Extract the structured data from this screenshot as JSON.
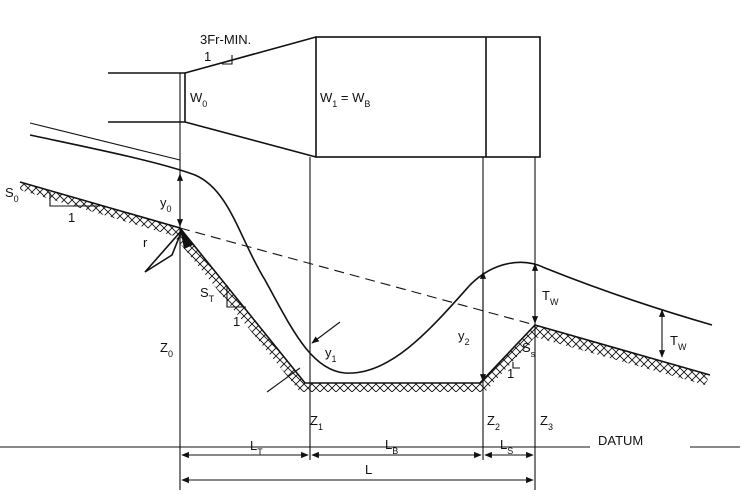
{
  "labels": [
    [
      "3Fr-MIN."
    ],
    [
      "1"
    ],
    [
      "W",
      "0"
    ],
    [
      "W",
      "1",
      " = W",
      "B"
    ],
    [
      "S",
      "0"
    ],
    [
      "1"
    ],
    [
      "y",
      "0"
    ],
    [
      "r"
    ],
    [
      "S",
      "T"
    ],
    [
      "1"
    ],
    [
      "Z",
      "0"
    ],
    [
      "y",
      "1"
    ],
    [
      "y",
      "2"
    ],
    [
      "T",
      "W"
    ],
    [
      "T",
      "W"
    ],
    [
      "S",
      "s"
    ],
    [
      "1"
    ],
    [
      "Z",
      "1"
    ],
    [
      "Z",
      "2"
    ],
    [
      "Z",
      "3"
    ],
    [
      "DATUM"
    ],
    [
      "L",
      "T"
    ],
    [
      "L",
      "B"
    ],
    [
      "L",
      "S"
    ],
    [
      "L"
    ]
  ]
}
